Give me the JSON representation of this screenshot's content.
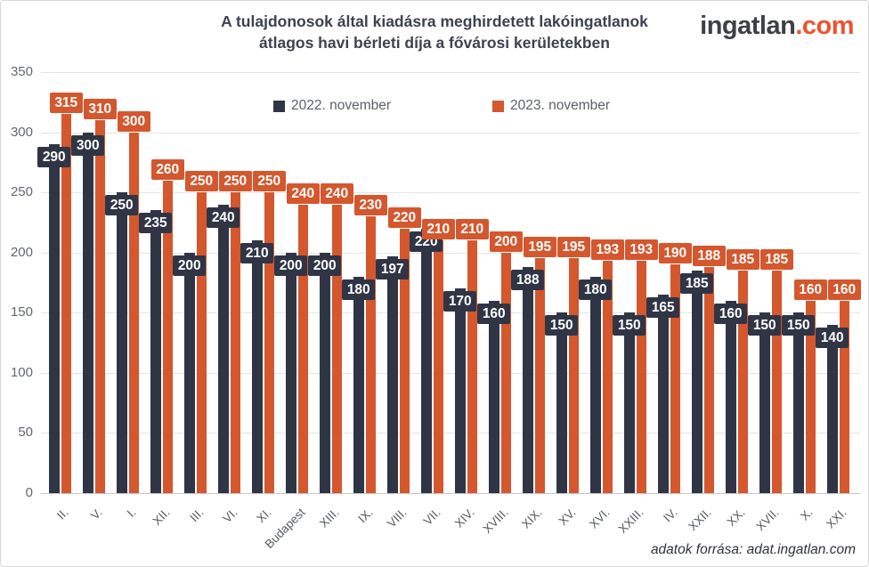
{
  "header": {
    "title_line1": "A tulajdonosok által kiadásra meghirdetett lakóingatlanok",
    "title_line2": "átlagos havi bérleti díja a fővárosi kerületekben"
  },
  "logo": {
    "name": "ingatlan",
    "tld": ".com"
  },
  "legend": {
    "items": [
      {
        "label": "2022. november",
        "color": "#2f3545"
      },
      {
        "label": "2023. november",
        "color": "#d4572e"
      }
    ]
  },
  "footer": {
    "source_text": "adatok forrása: adat.ingatlan.com"
  },
  "colors": {
    "series_2022": "#2f3545",
    "series_2023": "#d4572e",
    "logo_accent": "#ee512f",
    "title_text": "#3c4250",
    "grid": "#e4e4e4",
    "baseline": "#c6c6c6"
  },
  "chart_data": {
    "type": "bar",
    "title": "A tulajdonosok által kiadásra meghirdetett lakóingatlanok átlagos havi bérleti díja a fővárosi kerületekben",
    "categories": [
      "II.",
      "V.",
      "I.",
      "XII.",
      "III.",
      "VI.",
      "XI.",
      "Budapest",
      "XIII.",
      "IX.",
      "VIII.",
      "VII.",
      "XIV.",
      "XVIII.",
      "XIX.",
      "XV.",
      "XVI.",
      "XXIII.",
      "IV.",
      "XXII.",
      "XX.",
      "XVII.",
      "X.",
      "XXI."
    ],
    "series": [
      {
        "name": "2022. november",
        "color": "#2f3545",
        "values": [
          290,
          300,
          250,
          235,
          200,
          240,
          210,
          200,
          200,
          180,
          197,
          220,
          170,
          160,
          188,
          150,
          180,
          150,
          165,
          185,
          160,
          150,
          150,
          140
        ]
      },
      {
        "name": "2023. november",
        "color": "#d4572e",
        "values": [
          315,
          310,
          300,
          260,
          250,
          250,
          250,
          240,
          240,
          230,
          220,
          210,
          210,
          200,
          195,
          195,
          193,
          193,
          190,
          188,
          185,
          185,
          160,
          160
        ]
      }
    ],
    "highlight_category": "Budapest",
    "ylim": [
      0,
      350
    ],
    "yticks": [
      0,
      50,
      100,
      150,
      200,
      250,
      300,
      350
    ],
    "grid": true,
    "legend_position": "top-center",
    "source_note": "adatok forrása: adat.ingatlan.com"
  }
}
